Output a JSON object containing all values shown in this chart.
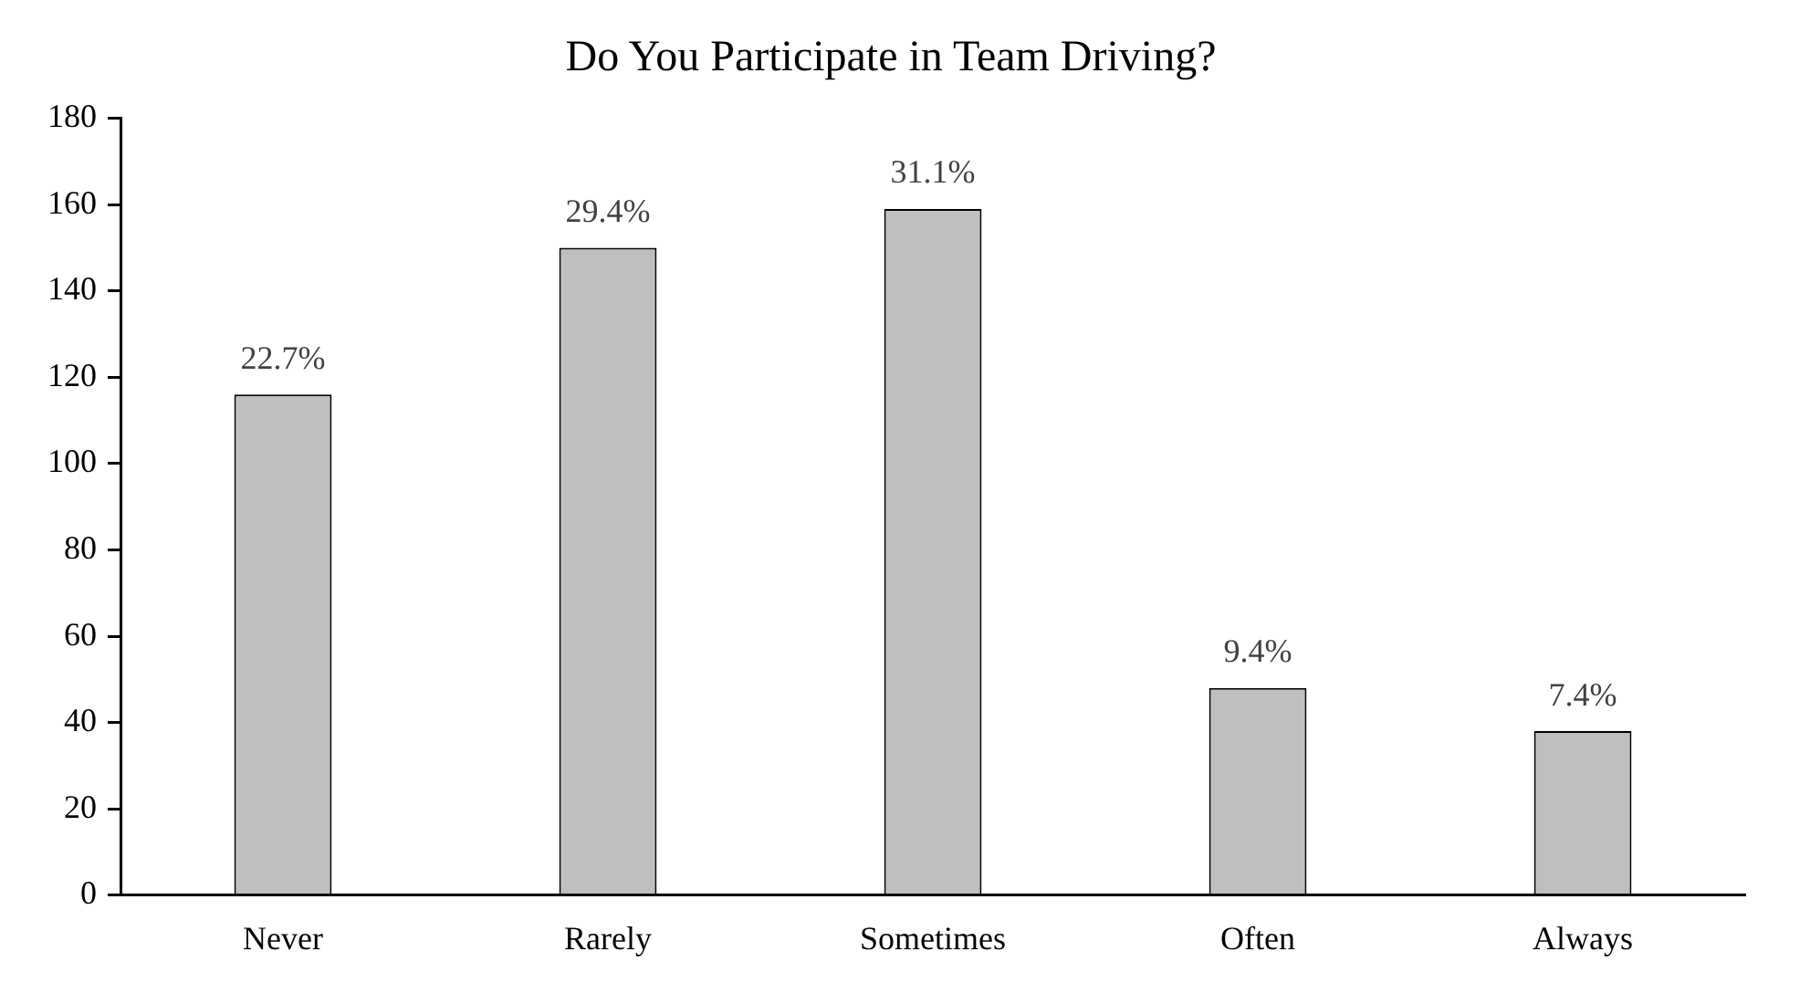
{
  "chart_data": {
    "type": "bar",
    "title": "Do You Participate in Team Driving?",
    "categories": [
      "Never",
      "Rarely",
      "Sometimes",
      "Often",
      "Always"
    ],
    "values": [
      116,
      150,
      159,
      48,
      38
    ],
    "annotations": [
      {
        "text": "22.7%",
        "x": "Never",
        "y": 116
      },
      {
        "text": "29.4%",
        "x": "Rarely",
        "y": 150
      },
      {
        "text": "31.1%",
        "x": "Sometimes",
        "y": 159
      },
      {
        "text": "9.4%",
        "x": "Often",
        "y": 48
      },
      {
        "text": "7.4%",
        "x": "Always",
        "y": 38
      }
    ],
    "color": "#bfbfbf",
    "ylim": [
      0,
      180
    ],
    "yticks": [
      0,
      20,
      40,
      60,
      80,
      100,
      120,
      140,
      160,
      180
    ],
    "grid": false,
    "legend": false
  }
}
